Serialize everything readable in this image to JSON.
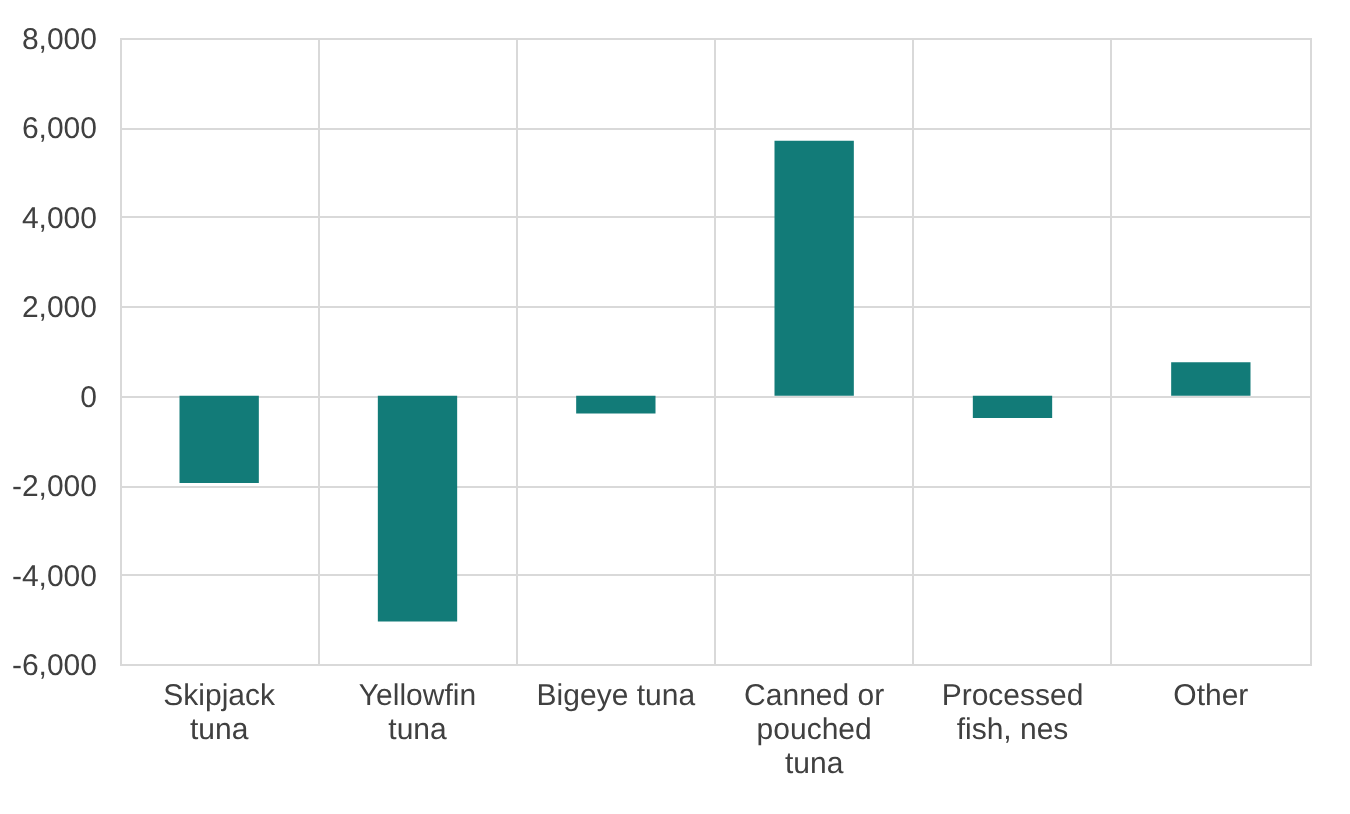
{
  "chart_data": {
    "type": "bar",
    "categories": [
      "Skipjack tuna",
      "Yellowfin tuna",
      "Bigeye tuna",
      "Canned or pouched tuna",
      "Processed fish, nes",
      "Other"
    ],
    "values": [
      -1950,
      -5050,
      -400,
      5700,
      -500,
      750
    ],
    "color": "#127b78",
    "ylim": [
      -6000,
      8000
    ],
    "yticks": [
      {
        "value": -6000,
        "label": "-6,000"
      },
      {
        "value": -4000,
        "label": "-4,000"
      },
      {
        "value": -2000,
        "label": "-2,000"
      },
      0,
      {
        "value": 2000,
        "label": "2,000"
      },
      {
        "value": 4000,
        "label": "4,000"
      },
      {
        "value": 6000,
        "label": "6,000"
      },
      {
        "value": 8000,
        "label": "8,000"
      }
    ],
    "grid": true
  }
}
